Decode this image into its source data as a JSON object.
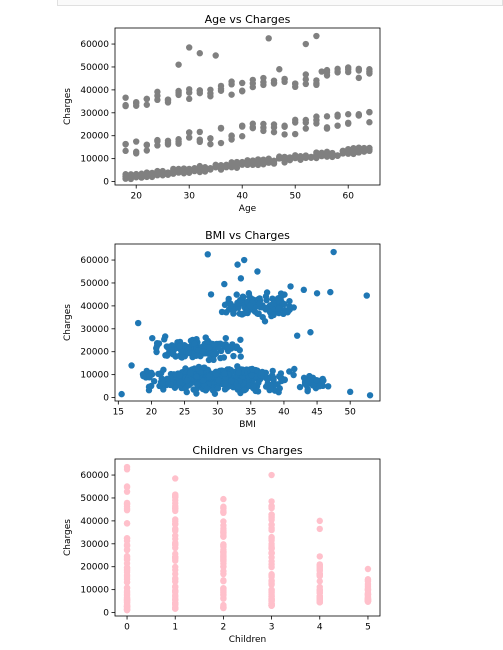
{
  "chart_data": [
    {
      "type": "scatter",
      "title": "Age vs Charges",
      "xlabel": "Age",
      "ylabel": "Charges",
      "xlim": [
        16,
        66
      ],
      "ylim": [
        -1500,
        67000
      ],
      "xticks": [
        20,
        30,
        40,
        50,
        60
      ],
      "yticks": [
        0,
        10000,
        20000,
        30000,
        40000,
        50000,
        60000
      ],
      "ytick_labels": [
        "0",
        "10000",
        "20000",
        "30000",
        "40000",
        "50000",
        "60000"
      ],
      "color": "#808080",
      "bands": [
        {
          "x": [
            18,
            64
          ],
          "y0": 1800,
          "y1": 14000,
          "jitter": 1400,
          "step": 1
        },
        {
          "x": [
            18,
            64
          ],
          "y0": 15000,
          "y1": 28000,
          "jitter": 3500,
          "step": 2
        },
        {
          "x": [
            18,
            64
          ],
          "y0": 35000,
          "y1": 48000,
          "jitter": 3000,
          "step": 2
        }
      ],
      "points": [
        [
          30,
          58500
        ],
        [
          32,
          56000
        ],
        [
          35,
          55000
        ],
        [
          45,
          62500
        ],
        [
          52,
          60000
        ],
        [
          54,
          63500
        ],
        [
          28,
          51000
        ],
        [
          47,
          49000
        ],
        [
          55,
          48000
        ]
      ]
    },
    {
      "type": "scatter",
      "title": "BMI vs Charges",
      "xlabel": "BMI",
      "ylabel": "Charges",
      "xlim": [
        14.5,
        54.5
      ],
      "ylim": [
        -1500,
        67000
      ],
      "xticks": [
        15,
        20,
        25,
        30,
        35,
        40,
        45,
        50
      ],
      "yticks": [
        0,
        10000,
        20000,
        30000,
        40000,
        50000,
        60000
      ],
      "ytick_labels": [
        "0",
        "10000",
        "20000",
        "30000",
        "40000",
        "50000",
        "60000"
      ],
      "color": "#1f77b4",
      "clusters": [
        {
          "x": [
            18,
            42
          ],
          "y": [
            1000,
            15000
          ],
          "n": 420
        },
        {
          "x": [
            19,
            35
          ],
          "y": [
            14000,
            28000
          ],
          "n": 140
        },
        {
          "x": [
            30,
            42
          ],
          "y": [
            32000,
            48000
          ],
          "n": 110
        },
        {
          "x": [
            42,
            47
          ],
          "y": [
            1000,
            13000
          ],
          "n": 30
        }
      ],
      "points": [
        [
          28.5,
          62500
        ],
        [
          34,
          60000
        ],
        [
          47.5,
          63500
        ],
        [
          33,
          58000
        ],
        [
          33.5,
          52000
        ],
        [
          36,
          55000
        ],
        [
          52.5,
          44500
        ],
        [
          53,
          1000
        ],
        [
          50,
          2500
        ],
        [
          47,
          46000
        ],
        [
          45,
          45500
        ],
        [
          41,
          48500
        ],
        [
          43,
          47000
        ],
        [
          17,
          14000
        ],
        [
          18,
          32500
        ],
        [
          15.5,
          1500
        ],
        [
          42,
          27000
        ],
        [
          44,
          28500
        ],
        [
          31,
          49500
        ],
        [
          29,
          45000
        ]
      ]
    },
    {
      "type": "scatter",
      "title": "Children vs Charges",
      "xlabel": "Children",
      "ylabel": "Charges",
      "xlim": [
        -0.25,
        5.25
      ],
      "ylim": [
        -1500,
        67000
      ],
      "xticks": [
        0,
        1,
        2,
        3,
        4,
        5
      ],
      "yticks": [
        0,
        10000,
        20000,
        30000,
        40000,
        50000,
        60000
      ],
      "ytick_labels": [
        "0",
        "10000",
        "20000",
        "30000",
        "40000",
        "50000",
        "60000"
      ],
      "color": "#ffc0cb",
      "columns": [
        {
          "x": 0,
          "min": 1100,
          "max": 55000,
          "extra": [
            63500,
            62500
          ]
        },
        {
          "x": 1,
          "min": 1700,
          "max": 51500,
          "extra": [
            58500
          ]
        },
        {
          "x": 2,
          "min": 2000,
          "max": 49500,
          "extra": []
        },
        {
          "x": 3,
          "min": 3000,
          "max": 48500,
          "extra": [
            60000
          ]
        },
        {
          "x": 4,
          "min": 4500,
          "max": 21000,
          "extra": [
            40000,
            36500,
            24500
          ]
        },
        {
          "x": 5,
          "min": 4700,
          "max": 14500,
          "extra": [
            19000
          ]
        }
      ]
    }
  ]
}
